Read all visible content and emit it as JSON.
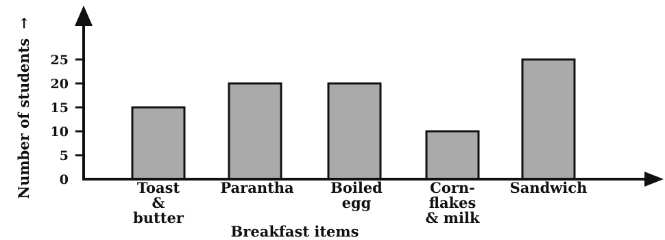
{
  "chart_data": {
    "type": "bar",
    "categories": [
      [
        "Toast",
        "&",
        "butter"
      ],
      [
        "Parantha"
      ],
      [
        "Boiled",
        "egg"
      ],
      [
        "Corn-",
        "flakes",
        "& milk"
      ],
      [
        "Sandwich"
      ]
    ],
    "values": [
      15,
      20,
      20,
      10,
      25
    ],
    "yticks": [
      0,
      5,
      10,
      15,
      20,
      25
    ],
    "ylim": [
      0,
      25
    ],
    "xlabel": "Breakfast items",
    "ylabel": "Number of students",
    "ylabel_arrow": "→",
    "title": "",
    "grid": false,
    "colors": {
      "bar_fill": "#aaaaaa",
      "bar_stroke": "#111111",
      "axis": "#111111"
    }
  }
}
